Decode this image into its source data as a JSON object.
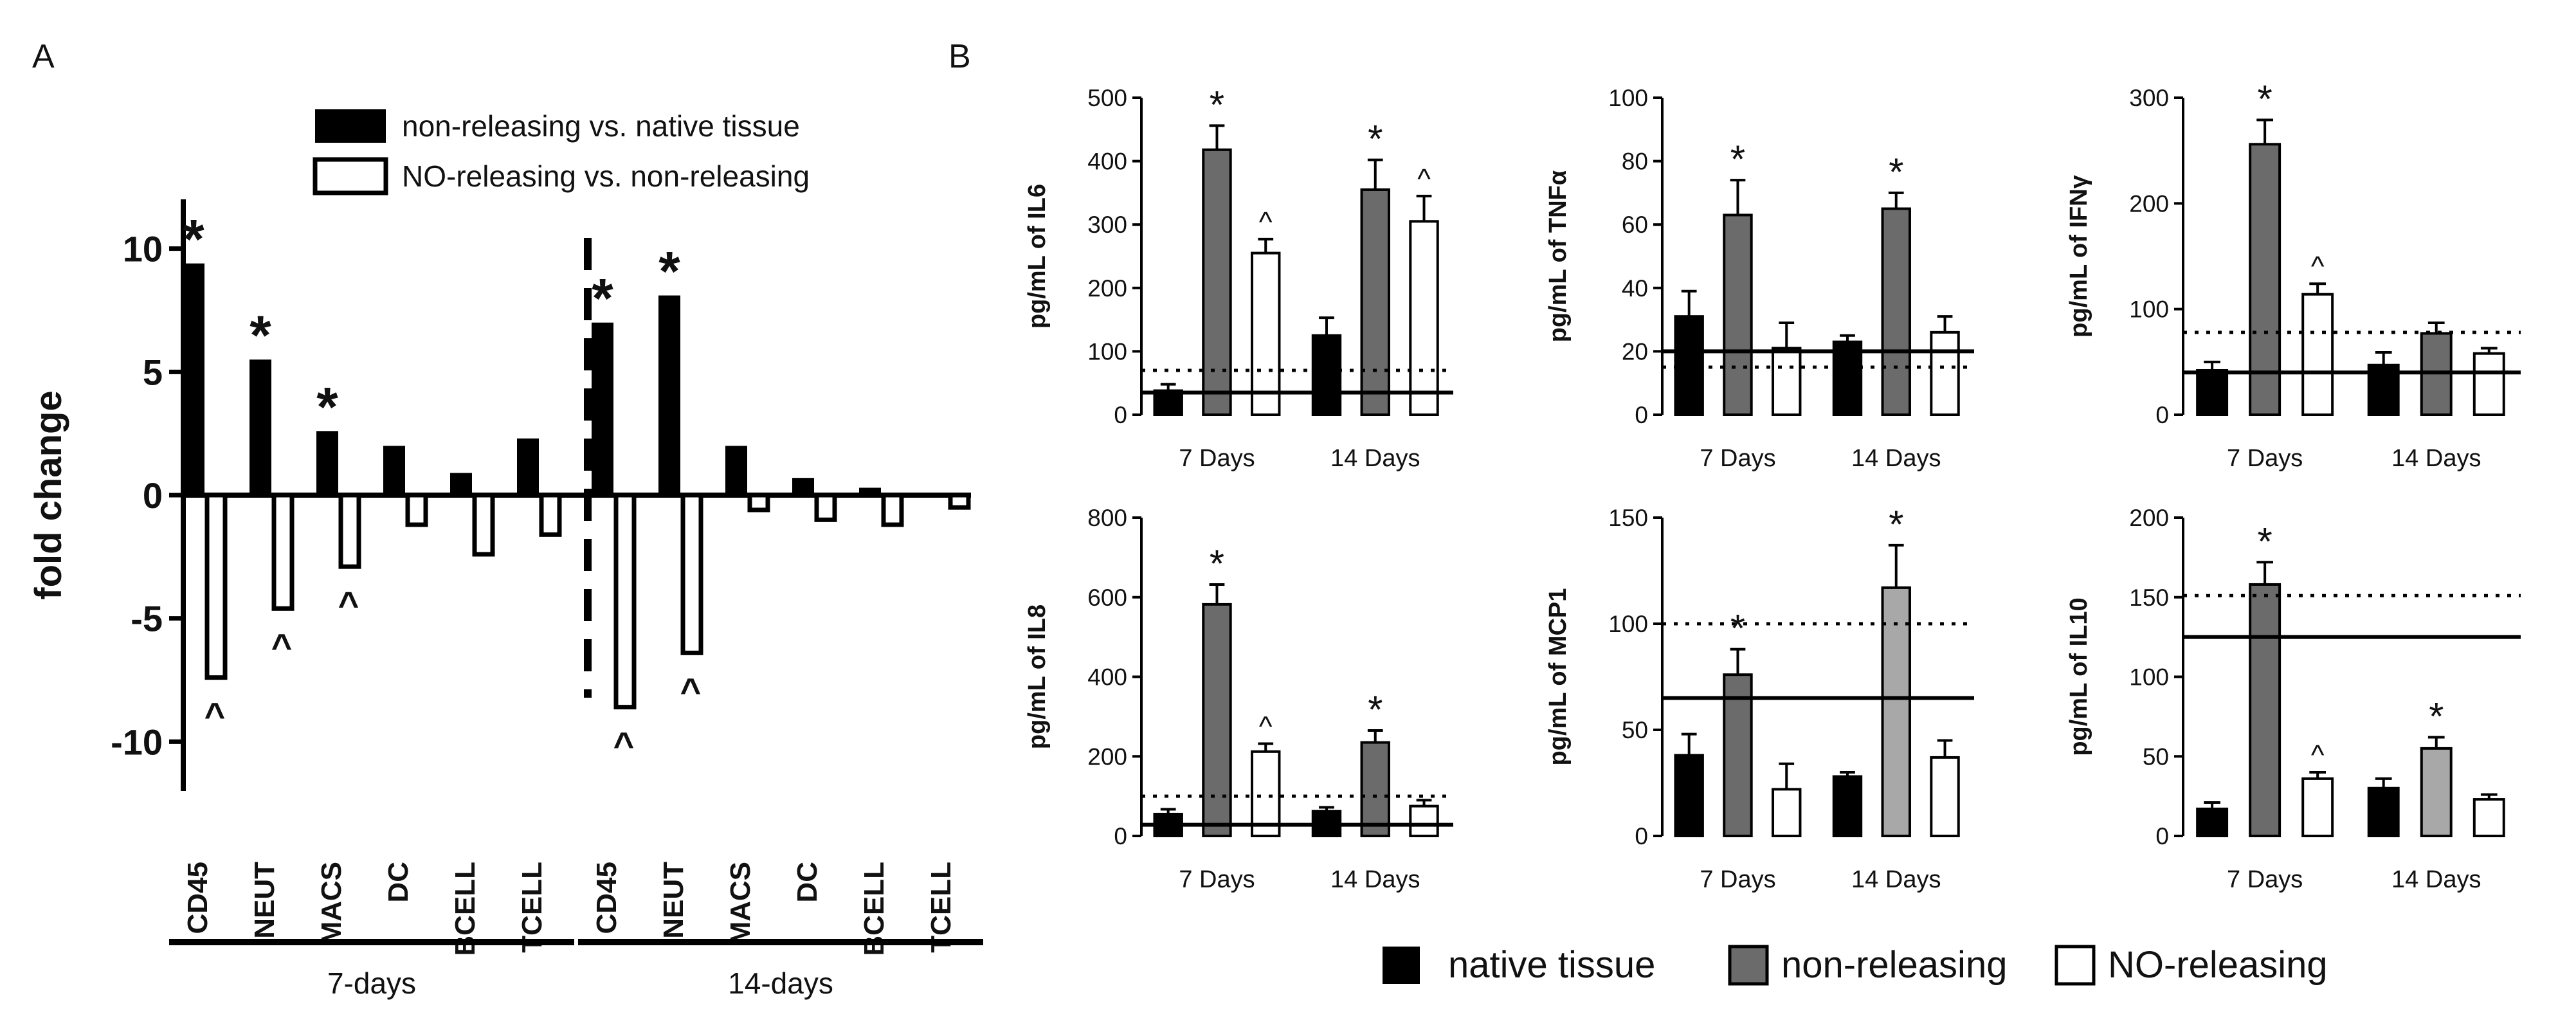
{
  "panel_labels": {
    "a": "A",
    "b": "B"
  },
  "legend_a": {
    "filled": "non-releasing vs. native tissue",
    "open": "NO-releasing vs. non-releasing"
  },
  "legend_b": {
    "native": "native tissue",
    "non": "non-releasing",
    "no": "NO-releasing"
  },
  "colors": {
    "native": "#000000",
    "non": "#6b6b6b",
    "non_light": "#a8a8a8",
    "no": "#ffffff",
    "line": "#000000"
  },
  "chart_data": [
    {
      "id": "panelA",
      "type": "bar",
      "ylabel": "fold change",
      "ylim": [
        -12,
        12
      ],
      "yticks": [
        10,
        5,
        0,
        -5,
        -10
      ],
      "categories": [
        "CD45",
        "NEUT",
        "MACS",
        "DC",
        "BCELL",
        "TCELL",
        "CD45",
        "NEUT",
        "MACS",
        "DC",
        "BCELL",
        "TCELL"
      ],
      "groups": [
        {
          "label": "7-days",
          "from": 0,
          "to": 5
        },
        {
          "label": "14-days",
          "from": 6,
          "to": 11
        }
      ],
      "series": [
        {
          "name": "non-releasing vs. native tissue",
          "values": [
            9.4,
            5.5,
            2.6,
            2.0,
            0.9,
            2.3,
            7.0,
            8.1,
            2.0,
            0.7,
            0.3,
            0.0
          ]
        },
        {
          "name": "NO-releasing vs. non-releasing",
          "values": [
            -7.4,
            -4.6,
            -2.9,
            -1.2,
            -2.4,
            -1.6,
            -8.6,
            -6.4,
            -0.6,
            -1.0,
            -1.2,
            -0.5
          ]
        }
      ],
      "annotations": [
        {
          "series": 0,
          "index": 0,
          "text": "*"
        },
        {
          "series": 0,
          "index": 1,
          "text": "*"
        },
        {
          "series": 0,
          "index": 2,
          "text": "*"
        },
        {
          "series": 0,
          "index": 6,
          "text": "*"
        },
        {
          "series": 0,
          "index": 7,
          "text": "*"
        },
        {
          "series": 1,
          "index": 0,
          "text": "^"
        },
        {
          "series": 1,
          "index": 1,
          "text": "^"
        },
        {
          "series": 1,
          "index": 2,
          "text": "^"
        },
        {
          "series": 1,
          "index": 6,
          "text": "^"
        },
        {
          "series": 1,
          "index": 7,
          "text": "^"
        }
      ],
      "divider_after_index": 5
    },
    {
      "id": "IL6",
      "type": "bar",
      "ylabel": "pg/mL of IL6",
      "ylim": [
        0,
        500
      ],
      "yticks": [
        0,
        100,
        200,
        300,
        400,
        500
      ],
      "categories": [
        "7 Days",
        "14 Days"
      ],
      "series": [
        {
          "name": "native tissue",
          "values": [
            38,
            125
          ],
          "errors": [
            10,
            28
          ]
        },
        {
          "name": "non-releasing",
          "values": [
            418,
            355
          ],
          "errors": [
            38,
            47
          ]
        },
        {
          "name": "NO-releasing",
          "values": [
            255,
            305
          ],
          "errors": [
            22,
            40
          ]
        }
      ],
      "solid_line": 35,
      "dotted_line": 70,
      "marks": [
        {
          "group": 0,
          "series": 1,
          "text": "*"
        },
        {
          "group": 0,
          "series": 2,
          "text": "^"
        },
        {
          "group": 1,
          "series": 1,
          "text": "*"
        },
        {
          "group": 1,
          "series": 2,
          "text": "^"
        }
      ]
    },
    {
      "id": "TNFa",
      "type": "bar",
      "ylabel": "pg/mL of TNFα",
      "ylim": [
        0,
        100
      ],
      "yticks": [
        0,
        20,
        40,
        60,
        80,
        100
      ],
      "categories": [
        "7 Days",
        "14 Days"
      ],
      "series": [
        {
          "name": "native tissue",
          "values": [
            31,
            23
          ],
          "errors": [
            8,
            2
          ]
        },
        {
          "name": "non-releasing",
          "values": [
            63,
            65
          ],
          "errors": [
            11,
            5
          ]
        },
        {
          "name": "NO-releasing",
          "values": [
            21,
            26
          ],
          "errors": [
            8,
            5
          ]
        }
      ],
      "solid_line": 20,
      "dotted_line": 15,
      "marks": [
        {
          "group": 0,
          "series": 1,
          "text": "*"
        },
        {
          "group": 1,
          "series": 1,
          "text": "*"
        }
      ]
    },
    {
      "id": "IFNg",
      "type": "bar",
      "ylabel": "pg/mL of IFNγ",
      "ylim": [
        0,
        300
      ],
      "yticks": [
        0,
        100,
        200,
        300
      ],
      "categories": [
        "7 Days",
        "14 Days"
      ],
      "series": [
        {
          "name": "native tissue",
          "values": [
            42,
            47
          ],
          "errors": [
            8,
            12
          ]
        },
        {
          "name": "non-releasing",
          "values": [
            256,
            77
          ],
          "errors": [
            23,
            10
          ]
        },
        {
          "name": "NO-releasing",
          "values": [
            114,
            58
          ],
          "errors": [
            10,
            5
          ]
        }
      ],
      "solid_line": 40,
      "dotted_line": 78,
      "marks": [
        {
          "group": 0,
          "series": 1,
          "text": "*"
        },
        {
          "group": 0,
          "series": 2,
          "text": "^"
        }
      ]
    },
    {
      "id": "IL8",
      "type": "bar",
      "ylabel": "pg/mL of IL8",
      "ylim": [
        0,
        800
      ],
      "yticks": [
        0,
        200,
        400,
        600,
        800
      ],
      "categories": [
        "7 Days",
        "14 Days"
      ],
      "series": [
        {
          "name": "native tissue",
          "values": [
            55,
            62
          ],
          "errors": [
            12,
            10
          ]
        },
        {
          "name": "non-releasing",
          "values": [
            582,
            235
          ],
          "errors": [
            50,
            30
          ]
        },
        {
          "name": "NO-releasing",
          "values": [
            212,
            75
          ],
          "errors": [
            20,
            15
          ]
        }
      ],
      "solid_line": 28,
      "dotted_line": 100,
      "marks": [
        {
          "group": 0,
          "series": 1,
          "text": "*"
        },
        {
          "group": 0,
          "series": 2,
          "text": "^"
        },
        {
          "group": 1,
          "series": 1,
          "text": "*"
        }
      ]
    },
    {
      "id": "MCP1",
      "type": "bar",
      "ylabel": "pg/mL of MCP1",
      "ylim": [
        0,
        150
      ],
      "yticks": [
        0,
        50,
        100,
        150
      ],
      "categories": [
        "7 Days",
        "14 Days"
      ],
      "series": [
        {
          "name": "native tissue",
          "values": [
            38,
            28
          ],
          "errors": [
            10,
            2
          ]
        },
        {
          "name": "non-releasing",
          "values": [
            76,
            117
          ],
          "errors": [
            12,
            20
          ]
        },
        {
          "name": "NO-releasing",
          "values": [
            22,
            37
          ],
          "errors": [
            12,
            8
          ]
        }
      ],
      "solid_line": 65,
      "dotted_line": 100,
      "marks": [
        {
          "group": 0,
          "series": 1,
          "text": "*"
        },
        {
          "group": 1,
          "series": 1,
          "text": "*"
        }
      ]
    },
    {
      "id": "IL10",
      "type": "bar",
      "ylabel": "pg/mL of IL10",
      "ylim": [
        0,
        200
      ],
      "yticks": [
        0,
        50,
        100,
        150,
        200
      ],
      "categories": [
        "7 Days",
        "14 Days"
      ],
      "series": [
        {
          "name": "native tissue",
          "values": [
            17,
            30
          ],
          "errors": [
            4,
            6
          ]
        },
        {
          "name": "non-releasing",
          "values": [
            158,
            55
          ],
          "errors": [
            14,
            7
          ]
        },
        {
          "name": "NO-releasing",
          "values": [
            36,
            23
          ],
          "errors": [
            4,
            3
          ]
        }
      ],
      "solid_line": 125,
      "dotted_line": 151,
      "marks": [
        {
          "group": 0,
          "series": 1,
          "text": "*"
        },
        {
          "group": 0,
          "series": 2,
          "text": "^"
        },
        {
          "group": 1,
          "series": 1,
          "text": "*"
        }
      ]
    }
  ]
}
